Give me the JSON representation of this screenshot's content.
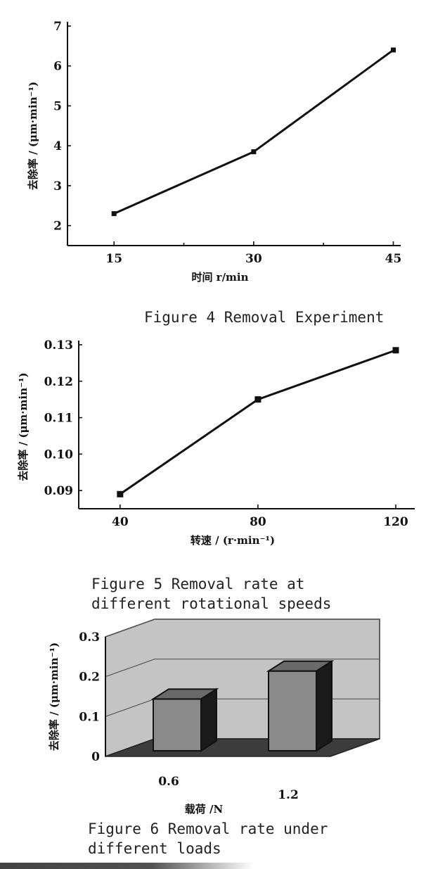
{
  "figures": [
    {
      "caption": "Figure 4 Removal Experiment",
      "chart_data": {
        "type": "line",
        "x": [
          15,
          30,
          45
        ],
        "series": [
          {
            "values": [
              2.3,
              3.85,
              6.4
            ]
          }
        ],
        "xlabel": "时间 r/min",
        "ylabel": "去除率 / (μm·min⁻¹)",
        "xlim": [
          10,
          47
        ],
        "ylim": [
          1.5,
          7
        ],
        "xticks": [
          "15",
          "30",
          "45"
        ],
        "yticks": [
          "2",
          "3",
          "4",
          "5",
          "6",
          "7"
        ],
        "marker": "square"
      }
    },
    {
      "caption": "Figure 5 Removal rate at\ndifferent rotational speeds",
      "chart_data": {
        "type": "line",
        "x": [
          40,
          80,
          120
        ],
        "series": [
          {
            "values": [
              0.089,
              0.115,
              0.1285
            ]
          }
        ],
        "xlabel": "转速 / (r·min⁻¹)",
        "ylabel": "去除率 / (μm·min⁻¹)",
        "xlim": [
          28,
          130
        ],
        "ylim": [
          0.085,
          0.13
        ],
        "xticks": [
          "40",
          "80",
          "120"
        ],
        "yticks": [
          "0.09",
          "0.10",
          "0.11",
          "0.12",
          "0.13"
        ],
        "marker": "square"
      }
    },
    {
      "caption": "Figure 6 Removal rate under\ndifferent loads",
      "chart_data": {
        "type": "bar",
        "categories": [
          "0.6",
          "1.2"
        ],
        "values": [
          0.13,
          0.2
        ],
        "xlabel": "载荷 /N",
        "ylabel": "去除率 / (μm·min⁻¹)",
        "ylim": [
          0,
          0.3
        ],
        "yticks": [
          "0",
          "0.1",
          "0.2",
          "0.3"
        ],
        "style": "3d",
        "colors": {
          "bar": "#8a8a8a",
          "floor": "#3c3c3c",
          "wall": "#c4c4c4"
        }
      }
    }
  ]
}
